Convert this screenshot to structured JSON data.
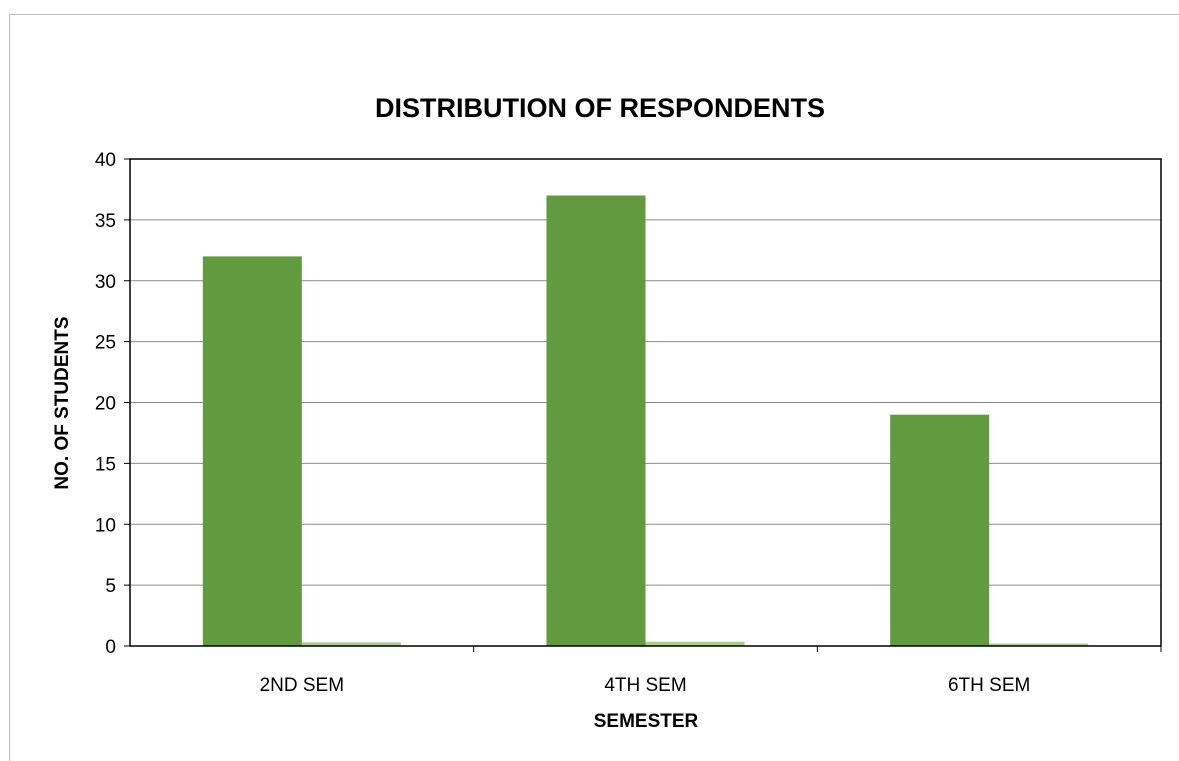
{
  "chart_data": {
    "type": "bar",
    "title": "DISTRIBUTION OF RESPONDENTS",
    "xlabel": "SEMESTER",
    "ylabel": "NO. OF STUDENTS",
    "categories": [
      "2ND SEM",
      "4TH SEM",
      "6TH SEM"
    ],
    "series": [
      {
        "values": [
          32,
          37,
          19
        ],
        "color": "#629a3f"
      },
      {
        "values": [
          0.3,
          0.35,
          0.2
        ],
        "color": "#a9cd8f"
      }
    ],
    "ylim": [
      0,
      40
    ],
    "yticks": [
      0,
      5,
      10,
      15,
      20,
      25,
      30,
      35,
      40
    ],
    "grid": true,
    "legend": "none"
  }
}
